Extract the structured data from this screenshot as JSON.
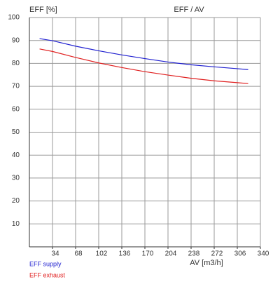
{
  "chart_data": {
    "type": "line",
    "title": "EFF / AV",
    "y_label": "EFF [%]",
    "x_label": "AV [m3/h]",
    "x": [
      15,
      34,
      68,
      102,
      136,
      170,
      204,
      238,
      272,
      306,
      322
    ],
    "series": [
      {
        "name": "EFF supply",
        "color": "#2020d0",
        "values": [
          90.8,
          89.9,
          87.5,
          85.5,
          83.7,
          82.1,
          80.6,
          79.4,
          78.5,
          77.7,
          77.3
        ]
      },
      {
        "name": "EFF exhaust",
        "color": "#e02020",
        "values": [
          86.3,
          85.2,
          82.6,
          80.2,
          78.2,
          76.4,
          74.9,
          73.5,
          72.4,
          71.6,
          71.2
        ]
      }
    ],
    "xlim": [
      0,
      340
    ],
    "xticks": [
      34,
      68,
      102,
      136,
      170,
      204,
      238,
      272,
      306,
      340
    ],
    "ylim": [
      0,
      100
    ],
    "yticks": [
      10,
      20,
      30,
      40,
      50,
      60,
      70,
      80,
      90,
      100
    ],
    "grid": true
  }
}
